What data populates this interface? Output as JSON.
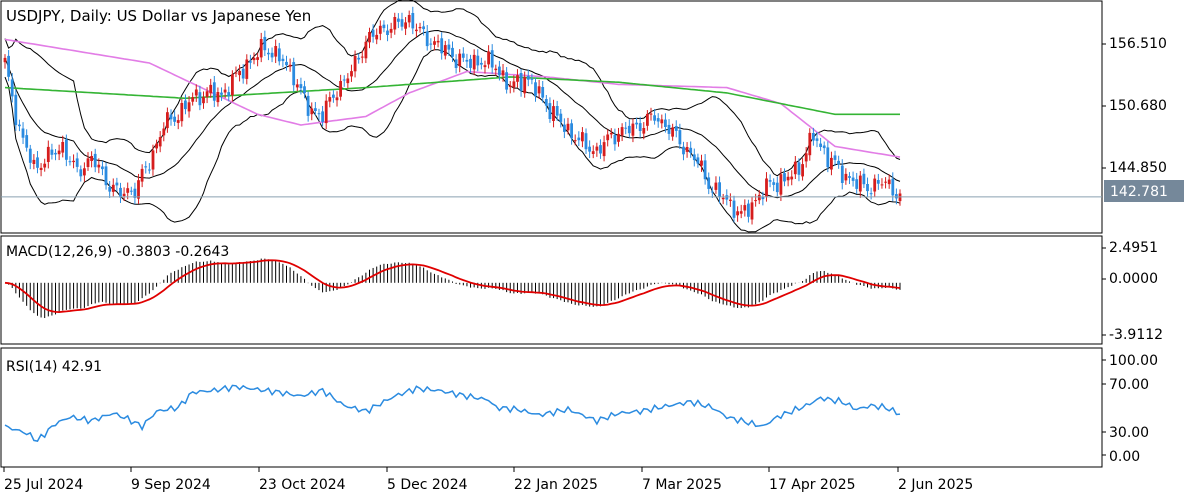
{
  "chart_data": {
    "type": "candlestick",
    "symbol_label": "USDJPY, Daily:  US Dollar vs Japanese Yen",
    "current_price": "142.781",
    "price_ticks": [
      "156.510",
      "150.680",
      "144.850"
    ],
    "x_labels": [
      "25 Jul 2024",
      "9 Sep 2024",
      "23 Oct 2024",
      "5 Dec 2024",
      "22 Jan 2025",
      "7 Mar 2025",
      "17 Apr 2025",
      "2 Jun 2025"
    ],
    "price_ylim": [
      139.5,
      161.0
    ],
    "close_anchors": [
      [
        0,
        155.2
      ],
      [
        4,
        149.0
      ],
      [
        8,
        145.5
      ],
      [
        12,
        146.5
      ],
      [
        16,
        147.5
      ],
      [
        20,
        145.0
      ],
      [
        24,
        146.5
      ],
      [
        28,
        144.3
      ],
      [
        32,
        143.0
      ],
      [
        36,
        143.5
      ],
      [
        40,
        146.0
      ],
      [
        44,
        149.5
      ],
      [
        48,
        150.5
      ],
      [
        52,
        152.0
      ],
      [
        56,
        152.5
      ],
      [
        60,
        152.3
      ],
      [
        64,
        154.0
      ],
      [
        68,
        155.5
      ],
      [
        72,
        156.8
      ],
      [
        76,
        155.8
      ],
      [
        80,
        154.2
      ],
      [
        84,
        151.0
      ],
      [
        88,
        150.5
      ],
      [
        92,
        152.8
      ],
      [
        96,
        154.5
      ],
      [
        100,
        157.3
      ],
      [
        104,
        158.4
      ],
      [
        108,
        158.8
      ],
      [
        112,
        159.4
      ],
      [
        116,
        157.8
      ],
      [
        120,
        157.0
      ],
      [
        124,
        156.0
      ],
      [
        128,
        155.3
      ],
      [
        132,
        155.5
      ],
      [
        136,
        155.0
      ],
      [
        140,
        153.0
      ],
      [
        144,
        154.0
      ],
      [
        148,
        152.5
      ],
      [
        152,
        150.5
      ],
      [
        156,
        149.0
      ],
      [
        160,
        147.8
      ],
      [
        164,
        147.0
      ],
      [
        168,
        148.5
      ],
      [
        172,
        149.0
      ],
      [
        176,
        149.5
      ],
      [
        180,
        150.3
      ],
      [
        184,
        149.2
      ],
      [
        188,
        147.5
      ],
      [
        192,
        146.0
      ],
      [
        196,
        143.5
      ],
      [
        200,
        142.5
      ],
      [
        204,
        141.0
      ],
      [
        208,
        142.5
      ],
      [
        212,
        144.0
      ],
      [
        216,
        144.3
      ],
      [
        220,
        145.5
      ],
      [
        224,
        148.5
      ],
      [
        228,
        146.5
      ],
      [
        232,
        145.0
      ],
      [
        236,
        144.0
      ],
      [
        240,
        143.7
      ],
      [
        244,
        144.2
      ],
      [
        248,
        142.8
      ]
    ],
    "bars_count": 249,
    "moving_averages": [
      {
        "color": "#e27de6",
        "points": [
          [
            0,
            157.5
          ],
          [
            40,
            155.3
          ],
          [
            70,
            150.5
          ],
          [
            82,
            149.5
          ],
          [
            100,
            150.3
          ],
          [
            112,
            152.5
          ],
          [
            128,
            154.5
          ],
          [
            150,
            154.0
          ],
          [
            170,
            153.3
          ],
          [
            200,
            153.0
          ],
          [
            215,
            151.5
          ],
          [
            230,
            147.5
          ],
          [
            248,
            146.5
          ]
        ]
      },
      {
        "color": "#34b434",
        "points": [
          [
            0,
            153.0
          ],
          [
            50,
            152.0
          ],
          [
            100,
            153.0
          ],
          [
            140,
            154.0
          ],
          [
            170,
            153.5
          ],
          [
            200,
            152.5
          ],
          [
            230,
            150.5
          ],
          [
            248,
            150.5
          ]
        ]
      }
    ],
    "bollinger": {
      "color": "#000000",
      "period": 20,
      "width": 2
    },
    "macd": {
      "label": "MACD(12,26,9) -0.3803 -0.2643",
      "ticks": [
        "2.4951",
        "0.0000",
        "-3.9112"
      ],
      "ylim": [
        -4.6,
        3.5
      ],
      "histogram_color": "#000000",
      "signal_color": "#e00000"
    },
    "rsi": {
      "label": "RSI(14) 42.91",
      "ticks": [
        "100.00",
        "70.00",
        "30.00",
        "0.00"
      ],
      "ylim": [
        0,
        100
      ],
      "line_color": "#2b8be0",
      "values_anchor": [
        [
          0,
          30
        ],
        [
          6,
          23
        ],
        [
          9,
          15
        ],
        [
          14,
          33
        ],
        [
          18,
          40
        ],
        [
          24,
          36
        ],
        [
          30,
          44
        ],
        [
          34,
          38
        ],
        [
          38,
          30
        ],
        [
          42,
          46
        ],
        [
          48,
          50
        ],
        [
          52,
          66
        ],
        [
          58,
          68
        ],
        [
          64,
          72
        ],
        [
          70,
          69
        ],
        [
          76,
          66
        ],
        [
          82,
          62
        ],
        [
          88,
          68
        ],
        [
          94,
          52
        ],
        [
          100,
          46
        ],
        [
          108,
          62
        ],
        [
          114,
          70
        ],
        [
          120,
          68
        ],
        [
          128,
          62
        ],
        [
          134,
          58
        ],
        [
          136,
          50
        ],
        [
          142,
          48
        ],
        [
          148,
          42
        ],
        [
          156,
          48
        ],
        [
          164,
          36
        ],
        [
          170,
          44
        ],
        [
          176,
          46
        ],
        [
          184,
          52
        ],
        [
          190,
          56
        ],
        [
          196,
          50
        ],
        [
          200,
          40
        ],
        [
          204,
          36
        ],
        [
          210,
          30
        ],
        [
          214,
          40
        ],
        [
          218,
          46
        ],
        [
          222,
          52
        ],
        [
          226,
          60
        ],
        [
          232,
          56
        ],
        [
          236,
          48
        ],
        [
          240,
          52
        ],
        [
          244,
          50
        ],
        [
          248,
          43
        ]
      ]
    }
  }
}
